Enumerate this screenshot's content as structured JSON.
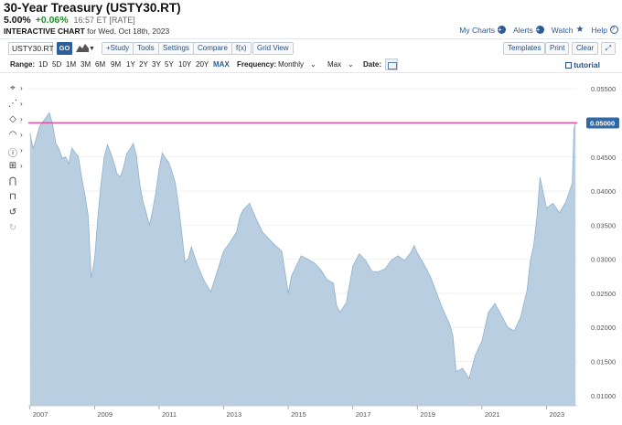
{
  "header": {
    "title": "30-Year Treasury (USTY30.RT)",
    "price": "5.00%",
    "change": "+0.06%",
    "timestamp": "16:57 ET [RATE]",
    "subtitle_bold": "INTERACTIVE CHART",
    "subtitle_rest": "for Wed, Oct 18th, 2023"
  },
  "top_links": {
    "my_charts": "My Charts",
    "alerts": "Alerts",
    "watch": "Watch",
    "help": "Help"
  },
  "toolbar": {
    "symbol_value": "USTY30.RT",
    "go_label": "GO",
    "study_label": "+Study",
    "tools_label": "Tools",
    "settings_label": "Settings",
    "compare_label": "Compare",
    "fx_label": "f(x)",
    "grid_view_label": "Grid View",
    "templates_label": "Templates",
    "print_label": "Print",
    "clear_label": "Clear",
    "expand_icon": "expand-icon"
  },
  "range_bar": {
    "range_label": "Range:",
    "ranges": [
      "1D",
      "5D",
      "1M",
      "3M",
      "6M",
      "9M",
      "1Y",
      "2Y",
      "3Y",
      "5Y",
      "10Y",
      "20Y",
      "MAX"
    ],
    "selected_range": "MAX",
    "frequency_label": "Frequency:",
    "frequency_value": "Monthly",
    "max_value": "Max",
    "date_label": "Date:",
    "tutorial_label": "tutorial"
  },
  "left_tools": [
    {
      "icon": "crosshair-icon"
    },
    {
      "icon": "draw-lines-icon"
    },
    {
      "icon": "shapes-icon"
    },
    {
      "icon": "fibonacci-icon"
    },
    {
      "icon": "text-annotation-icon"
    },
    {
      "icon": "pattern-icon"
    },
    {
      "icon": "magnet-icon"
    },
    {
      "icon": "lock-icon"
    },
    {
      "icon": "undo-icon"
    },
    {
      "icon": "redo-icon"
    }
  ],
  "chart_data": {
    "type": "area",
    "title": "",
    "xlabel": "",
    "ylabel": "",
    "x_ticks": [
      "2007",
      "2009",
      "2011",
      "2013",
      "2015",
      "2017",
      "2019",
      "2021",
      "2023"
    ],
    "y_ticks": [
      "0.05500",
      "0.05000",
      "0.04500",
      "0.04000",
      "0.03500",
      "0.03000",
      "0.02500",
      "0.02000",
      "0.01500",
      "0.01000"
    ],
    "ylim": [
      0.0085,
      0.0565
    ],
    "xlim": [
      2006.95,
      2023.95
    ],
    "last_value_label": "0.05000",
    "horizontal_line_value": 0.05,
    "colors": {
      "area_fill": "#b9cfe1",
      "line": "#8eb1cc",
      "hline": "#e0559f",
      "badge": "#2f6aa6"
    },
    "series": [
      {
        "x": [
          2007.0,
          2007.1,
          2007.2,
          2007.3,
          2007.4,
          2007.5,
          2007.6,
          2007.7,
          2007.8,
          2007.9,
          2008.0,
          2008.1,
          2008.2,
          2008.3,
          2008.4,
          2008.5,
          2008.6,
          2008.7,
          2008.8,
          2008.9,
          2009.0,
          2009.1,
          2009.2,
          2009.3,
          2009.4,
          2009.5,
          2009.6,
          2009.7,
          2009.8,
          2009.9,
          2010.0,
          2010.1,
          2010.2,
          2010.3,
          2010.4,
          2010.5,
          2010.6,
          2010.7,
          2010.8,
          2010.9,
          2011.0,
          2011.1,
          2011.2,
          2011.3,
          2011.4,
          2011.5,
          2011.6,
          2011.7,
          2011.8,
          2011.9,
          2012.0,
          2012.2,
          2012.4,
          2012.6,
          2012.8,
          2013.0,
          2013.2,
          2013.4,
          2013.5,
          2013.6,
          2013.8,
          2014.0,
          2014.2,
          2014.4,
          2014.6,
          2014.8,
          2015.0,
          2015.1,
          2015.2,
          2015.4,
          2015.6,
          2015.8,
          2016.0,
          2016.2,
          2016.4,
          2016.5,
          2016.6,
          2016.8,
          2017.0,
          2017.2,
          2017.4,
          2017.6,
          2017.8,
          2018.0,
          2018.2,
          2018.4,
          2018.6,
          2018.8,
          2018.9,
          2019.0,
          2019.2,
          2019.4,
          2019.6,
          2019.8,
          2020.0,
          2020.1,
          2020.2,
          2020.4,
          2020.6,
          2020.8,
          2021.0,
          2021.2,
          2021.4,
          2021.6,
          2021.8,
          2022.0,
          2022.2,
          2022.4,
          2022.5,
          2022.6,
          2022.7,
          2022.8,
          2022.9,
          2023.0,
          2023.2,
          2023.4,
          2023.6,
          2023.8,
          2023.85,
          2023.9
        ],
        "values": [
          0.0485,
          0.0462,
          0.0478,
          0.0495,
          0.0502,
          0.0508,
          0.0515,
          0.0498,
          0.047,
          0.0462,
          0.0448,
          0.045,
          0.044,
          0.0463,
          0.0456,
          0.0451,
          0.042,
          0.0395,
          0.0365,
          0.0272,
          0.03,
          0.036,
          0.041,
          0.045,
          0.0468,
          0.0456,
          0.0442,
          0.0425,
          0.0421,
          0.0435,
          0.0455,
          0.0462,
          0.047,
          0.0452,
          0.041,
          0.0385,
          0.0368,
          0.035,
          0.0372,
          0.0398,
          0.0432,
          0.0456,
          0.0448,
          0.0442,
          0.0428,
          0.0412,
          0.038,
          0.034,
          0.0296,
          0.03,
          0.0318,
          0.029,
          0.0268,
          0.0252,
          0.0282,
          0.0312,
          0.0325,
          0.034,
          0.0362,
          0.0372,
          0.0382,
          0.036,
          0.034,
          0.033,
          0.032,
          0.0312,
          0.025,
          0.0275,
          0.0285,
          0.0305,
          0.03,
          0.0295,
          0.0285,
          0.027,
          0.0265,
          0.0232,
          0.0222,
          0.0236,
          0.029,
          0.0308,
          0.0298,
          0.0282,
          0.0282,
          0.0286,
          0.0299,
          0.0305,
          0.0298,
          0.031,
          0.032,
          0.0309,
          0.0293,
          0.0275,
          0.025,
          0.0225,
          0.0205,
          0.0188,
          0.0135,
          0.014,
          0.0125,
          0.016,
          0.018,
          0.0222,
          0.0235,
          0.0218,
          0.02,
          0.0195,
          0.0215,
          0.0255,
          0.0298,
          0.032,
          0.036,
          0.042,
          0.0398,
          0.0375,
          0.0382,
          0.0368,
          0.0384,
          0.0412,
          0.0492,
          0.05
        ]
      }
    ]
  }
}
